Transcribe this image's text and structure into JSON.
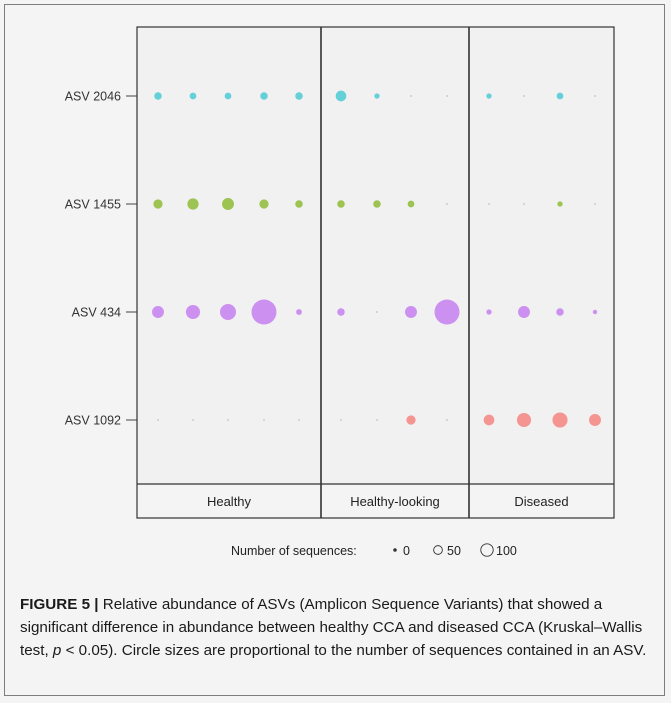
{
  "figure": {
    "label": "FIGURE 5 |",
    "caption_part1": " Relative abundance of ASVs (Amplicon Sequence Variants) that showed a significant difference in abundance between healthy CCA and diseased CCA (Kruskal–Wallis test, ",
    "caption_p": "p",
    "caption_part2": " < 0.05). Circle sizes are proportional to the number of sequences contained in an ASV."
  },
  "chart_data": {
    "type": "scatter",
    "encoding": "bubble",
    "title": "",
    "xlabel": "",
    "ylabel": "",
    "facets": [
      {
        "name": "Healthy",
        "samples": 5
      },
      {
        "name": "Healthy-looking",
        "samples": 4
      },
      {
        "name": "Diseased",
        "samples": 4
      }
    ],
    "categories": [
      "ASV 2046",
      "ASV 1455",
      "ASV 434",
      "ASV 1092"
    ],
    "colors": {
      "ASV 2046": "#5ccdd6",
      "ASV 1455": "#98c04a",
      "ASV 434": "#c98af0",
      "ASV 1092": "#f38f8b"
    },
    "series": [
      {
        "facet": "Healthy",
        "values": {
          "ASV 2046": [
            10,
            8,
            8,
            10,
            10
          ],
          "ASV 1455": [
            15,
            22,
            25,
            15,
            10
          ],
          "ASV 434": [
            25,
            35,
            45,
            110,
            6
          ],
          "ASV 1092": [
            0,
            0,
            0,
            0,
            0
          ]
        }
      },
      {
        "facet": "Healthy-looking",
        "values": {
          "ASV 2046": [
            20,
            5,
            0,
            0
          ],
          "ASV 1455": [
            10,
            10,
            8,
            0
          ],
          "ASV 434": [
            10,
            0,
            25,
            110
          ],
          "ASV 1092": [
            0,
            0,
            15,
            0
          ]
        }
      },
      {
        "facet": "Diseased",
        "values": {
          "ASV 2046": [
            5,
            0,
            8,
            0
          ],
          "ASV 1455": [
            0,
            0,
            5,
            0
          ],
          "ASV 434": [
            5,
            25,
            10,
            3
          ],
          "ASV 1092": [
            20,
            35,
            40,
            25
          ]
        }
      }
    ],
    "legend": {
      "title": "Number of sequences:",
      "position": "bottom",
      "entries": [
        {
          "label": "0",
          "value": 0
        },
        {
          "label": "50",
          "value": 50
        },
        {
          "label": "100",
          "value": 100
        }
      ]
    }
  }
}
